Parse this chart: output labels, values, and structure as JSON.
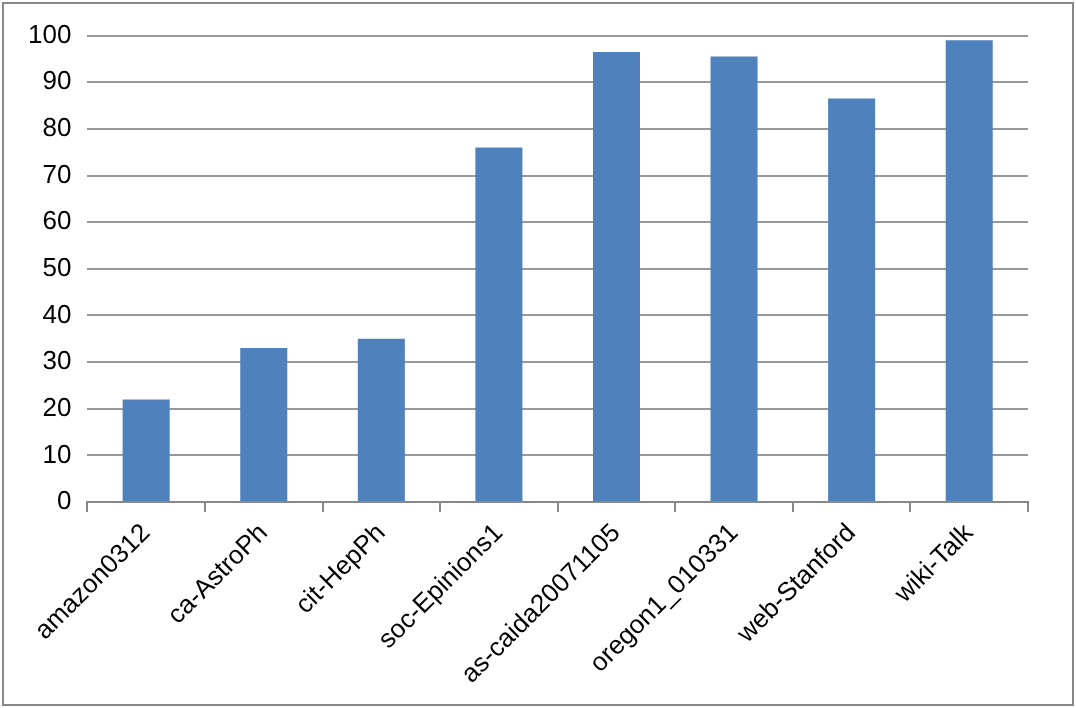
{
  "chart_data": {
    "type": "bar",
    "categories": [
      "amazon0312",
      "ca-AstroPh",
      "cit-HepPh",
      "soc-Epinions1",
      "as-caida20071105",
      "oregon1_010331",
      "web-Stanford",
      "wiki-Talk"
    ],
    "values": [
      22,
      33,
      35,
      76,
      96.5,
      95.5,
      86.5,
      99
    ],
    "color": "#4f81bd",
    "ylim": [
      0,
      100
    ],
    "yticks": [
      0,
      10,
      20,
      30,
      40,
      50,
      60,
      70,
      80,
      90,
      100
    ],
    "grid": "y",
    "legend": false
  }
}
